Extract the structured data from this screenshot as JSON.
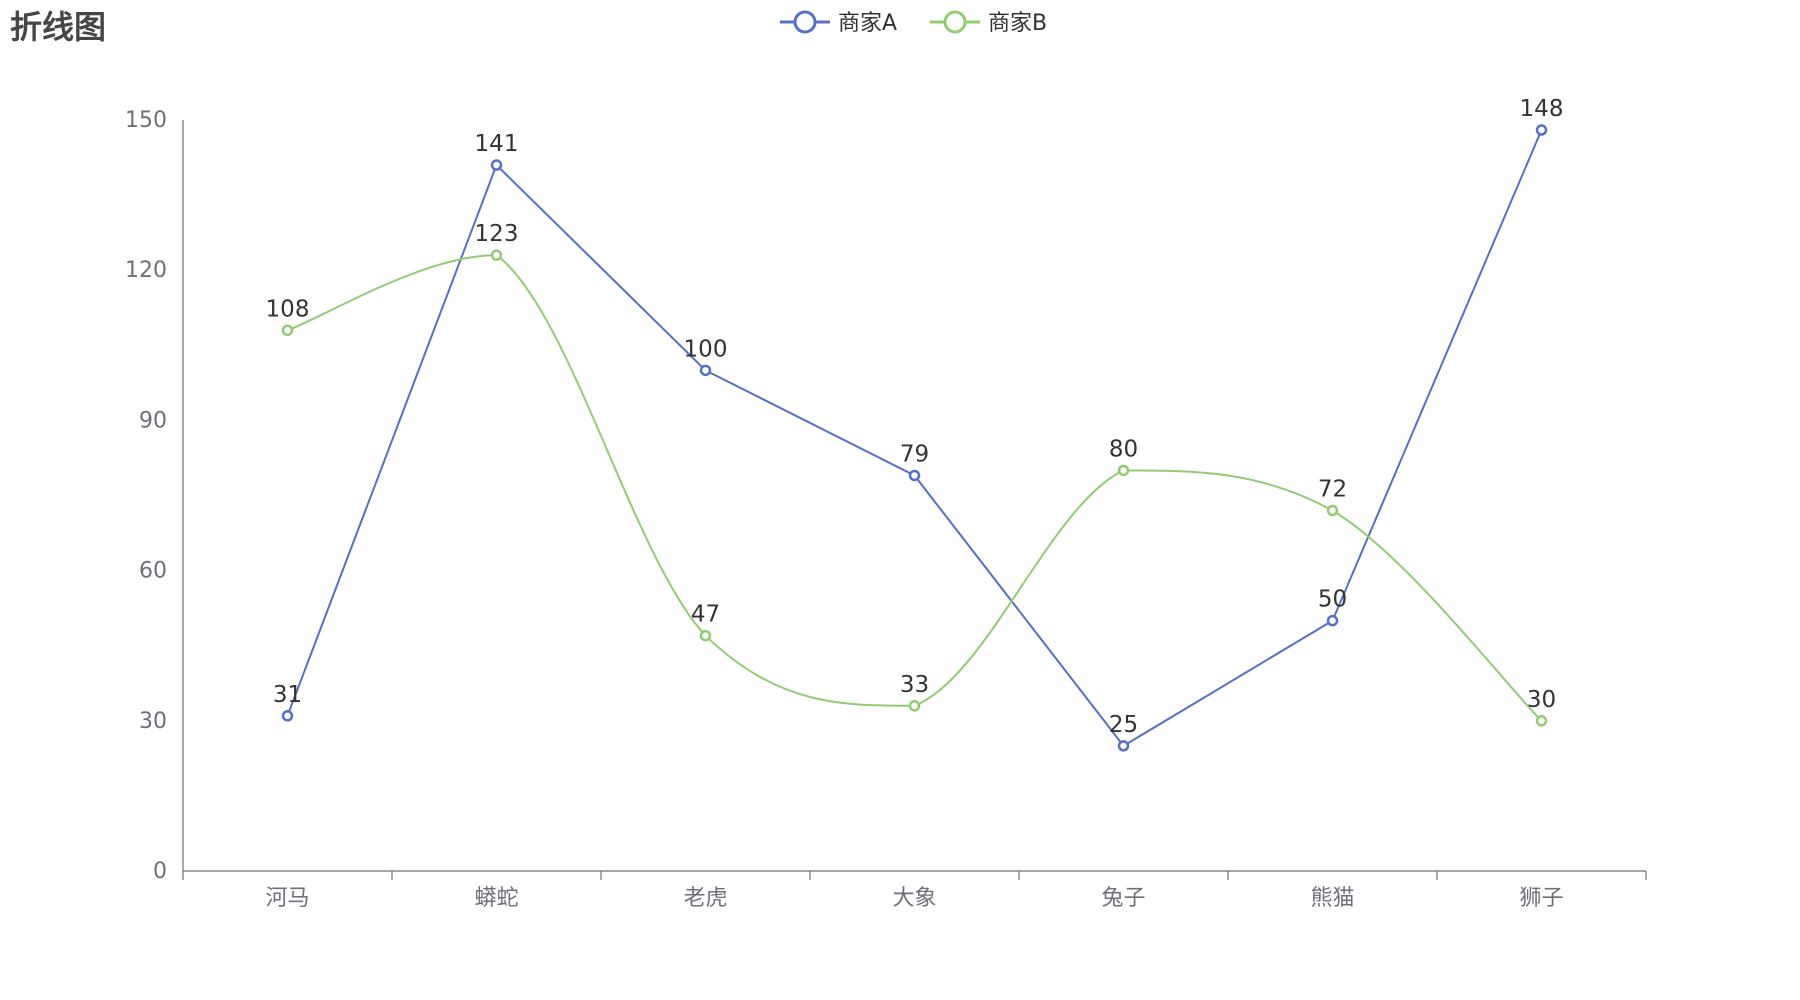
{
  "chart_data": {
    "type": "line",
    "title": "折线图",
    "categories": [
      "河马",
      "蟒蛇",
      "老虎",
      "大象",
      "兔子",
      "熊猫",
      "狮子"
    ],
    "ylim": [
      0,
      150
    ],
    "yticks": [
      0,
      30,
      60,
      90,
      120,
      150
    ],
    "legend_position": "top-center",
    "grid": false,
    "series": [
      {
        "name": "商家A",
        "values": [
          31,
          141,
          100,
          79,
          25,
          50,
          148
        ],
        "color": "#5470c6",
        "smooth": false
      },
      {
        "name": "商家B",
        "values": [
          108,
          123,
          47,
          33,
          80,
          72,
          30
        ],
        "color": "#91cc75",
        "smooth": true
      }
    ]
  }
}
